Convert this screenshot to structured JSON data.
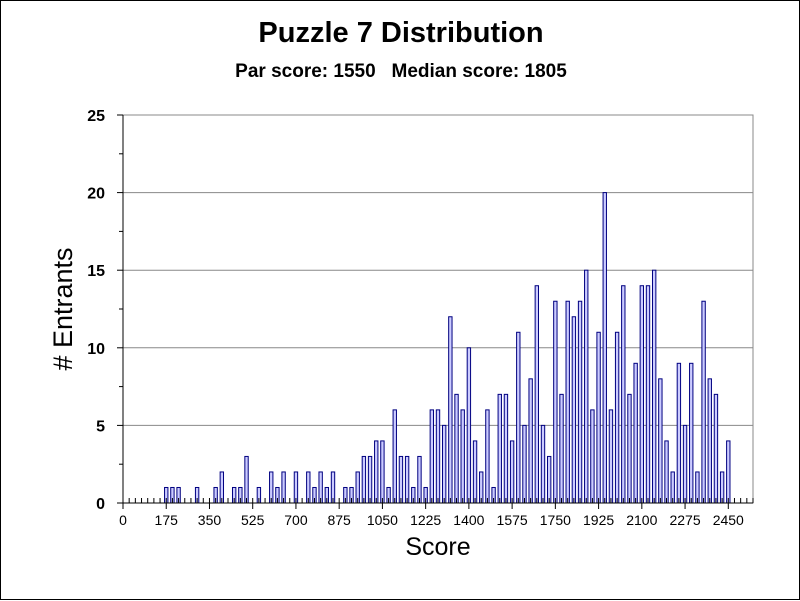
{
  "chart_data": {
    "type": "bar",
    "title": "Puzzle 7 Distribution",
    "subtitle": "Par score: 1550   Median score: 1805",
    "xlabel": "Score",
    "ylabel": "# Entrants",
    "ylim": [
      0,
      25
    ],
    "xlim": [
      0,
      2550
    ],
    "y_ticks": [
      "0",
      "5",
      "10",
      "15",
      "20",
      "25"
    ],
    "x_ticks": [
      "0",
      "175",
      "350",
      "525",
      "700",
      "875",
      "1050",
      "1225",
      "1400",
      "1575",
      "1750",
      "1925",
      "2100",
      "2275",
      "2450"
    ],
    "grid": true,
    "bar_width": 25,
    "colors": {
      "bar_fill": "#ccccff",
      "bar_stroke": "#000080",
      "grid": "#888888",
      "plot_bg": "#ffffff"
    },
    "series": [
      {
        "x": [
          175,
          200,
          225,
          300,
          375,
          400,
          450,
          475,
          500,
          550,
          600,
          625,
          650,
          700,
          750,
          775,
          800,
          825,
          850,
          900,
          925,
          950,
          975,
          1000,
          1025,
          1050,
          1075,
          1100,
          1125,
          1150,
          1175,
          1200,
          1225,
          1250,
          1275,
          1300,
          1325,
          1350,
          1375,
          1400,
          1425,
          1450,
          1475,
          1500,
          1525,
          1550,
          1575,
          1600,
          1625,
          1650,
          1675,
          1700,
          1725,
          1750,
          1775,
          1800,
          1825,
          1850,
          1875,
          1900,
          1925,
          1950,
          1975,
          2000,
          2025,
          2050,
          2075,
          2100,
          2125,
          2150,
          2175,
          2200,
          2225,
          2250,
          2275,
          2300,
          2325,
          2350,
          2375,
          2400,
          2425,
          2450
        ],
        "values": [
          1,
          1,
          1,
          1,
          1,
          2,
          1,
          1,
          3,
          1,
          2,
          1,
          2,
          2,
          2,
          1,
          2,
          1,
          2,
          1,
          1,
          2,
          3,
          3,
          4,
          4,
          1,
          6,
          3,
          3,
          1,
          3,
          1,
          6,
          6,
          5,
          12,
          7,
          6,
          10,
          4,
          2,
          6,
          1,
          7,
          7,
          4,
          11,
          5,
          8,
          14,
          5,
          3,
          13,
          7,
          13,
          12,
          13,
          15,
          6,
          11,
          20,
          6,
          11,
          14,
          7,
          9,
          14,
          14,
          15,
          8,
          4,
          2,
          9,
          5,
          9,
          2,
          13,
          8,
          7,
          2,
          4
        ]
      }
    ]
  }
}
